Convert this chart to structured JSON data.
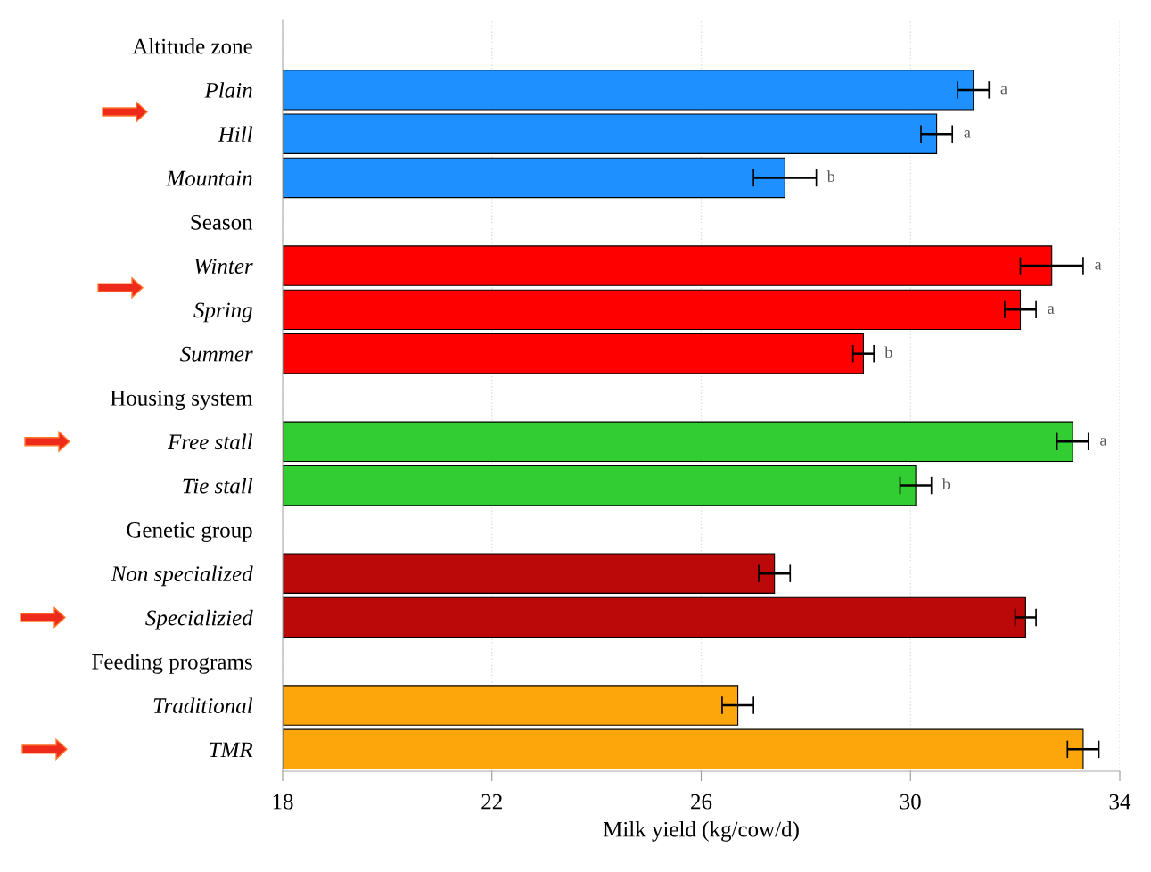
{
  "chart_data": {
    "type": "bar",
    "orientation": "horizontal",
    "xlabel": "Milk yield (kg/cow/d)",
    "categories": [
      "Altitude zone",
      "Plain",
      "Hill",
      "Mountain",
      "Season",
      "Winter",
      "Spring",
      "Summer",
      "Housing system",
      "Free stall",
      "Tie stall",
      "Genetic group",
      "Non specialized",
      "Specializied",
      "Feeding programs",
      "Traditional",
      "TMR"
    ],
    "values": [
      null,
      31.2,
      30.5,
      27.6,
      null,
      32.7,
      32.1,
      29.1,
      null,
      33.1,
      30.1,
      null,
      27.4,
      32.2,
      null,
      26.7,
      33.3
    ],
    "errors": [
      null,
      0.3,
      0.3,
      0.6,
      null,
      0.6,
      0.3,
      0.2,
      null,
      0.3,
      0.3,
      null,
      0.3,
      0.2,
      null,
      0.3,
      0.3
    ],
    "colors": [
      "#1e90ff",
      "#1e90ff",
      "#1e90ff",
      "#1e90ff",
      "#ff0000",
      "#ff0000",
      "#ff0000",
      "#ff0000",
      "#32cd32",
      "#32cd32",
      "#32cd32",
      "#bb0808",
      "#bb0808",
      "#bb0808",
      "#fca60c",
      "#fca60c",
      "#fca60c"
    ],
    "xlim": [
      18,
      34
    ],
    "xticks": [
      18,
      22,
      26,
      30,
      34
    ],
    "grid": "x",
    "value_labels": [
      null,
      "a",
      "a",
      "b",
      null,
      "a",
      "a",
      "b",
      null,
      "a",
      "b",
      null,
      null,
      null,
      null,
      null,
      null
    ]
  }
}
